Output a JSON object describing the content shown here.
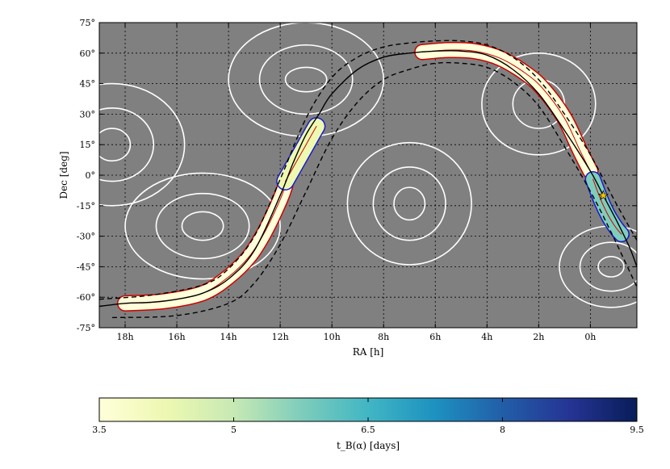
{
  "chart_data": [
    {
      "type": "contour",
      "xlabel": "RA [h]",
      "ylabel": "Dec [deg]",
      "x_ticks": [
        "18h",
        "16h",
        "14h",
        "12h",
        "10h",
        "8h",
        "6h",
        "4h",
        "2h",
        "0h"
      ],
      "x_tick_values_h": [
        18,
        16,
        14,
        12,
        10,
        8,
        6,
        4,
        2,
        0
      ],
      "xlim_h": [
        19,
        -1.8
      ],
      "y_ticks": [
        "75°",
        "60°",
        "45°",
        "30°",
        "15°",
        "0°",
        "-15°",
        "-30°",
        "-45°",
        "-60°",
        "-75°"
      ],
      "y_tick_values_deg": [
        75,
        60,
        45,
        30,
        15,
        0,
        -15,
        -30,
        -45,
        -60,
        -75
      ],
      "ylim_deg": [
        -75,
        75
      ],
      "grid": true,
      "background_color": "#808080",
      "colors": {
        "track_line": "#000000",
        "track_bounds": "#000000",
        "white_contours": "#ffffff",
        "red_contour": "#cc0000",
        "blue_contour": "#1a1acc",
        "star": "#f5c400"
      },
      "series": [
        {
          "points": [
            [
              19.0,
              -64.5
            ],
            [
              18.0,
              -63.0
            ],
            [
              17.0,
              -62.5
            ],
            [
              16.0,
              -61.0
            ],
            [
              15.0,
              -58.0
            ],
            [
              14.0,
              -51.0
            ],
            [
              13.0,
              -37.0
            ],
            [
              12.0,
              -10.0
            ],
            [
              11.5,
              6.0
            ],
            [
              11.0,
              20.0
            ],
            [
              10.5,
              30.0
            ],
            [
              10.0,
              40.0
            ],
            [
              9.0,
              52.0
            ],
            [
              8.0,
              58.0
            ],
            [
              7.0,
              60.0
            ],
            [
              6.0,
              61.0
            ],
            [
              5.0,
              61.0
            ],
            [
              4.0,
              59.0
            ],
            [
              3.0,
              52.0
            ],
            [
              2.0,
              40.0
            ],
            [
              1.0,
              22.0
            ],
            [
              0.0,
              2.0
            ],
            [
              -0.5,
              -10.0
            ],
            [
              -1.0,
              -22.0
            ],
            [
              -1.5,
              -35.0
            ],
            [
              -1.8,
              -45.0
            ]
          ]
        },
        {
          "points": [
            [
              19.0,
              -61.0
            ],
            [
              17.0,
              -59.0
            ],
            [
              15.0,
              -54.0
            ],
            [
              14.0,
              -46.0
            ],
            [
              13.0,
              -30.0
            ],
            [
              12.0,
              -2.0
            ],
            [
              11.0,
              28.0
            ],
            [
              10.0,
              48.0
            ],
            [
              9.0,
              58.0
            ],
            [
              8.0,
              63.0
            ],
            [
              7.0,
              65.0
            ],
            [
              6.0,
              66.0
            ],
            [
              5.0,
              66.0
            ],
            [
              4.0,
              64.0
            ],
            [
              3.0,
              58.0
            ],
            [
              2.0,
              47.0
            ],
            [
              1.0,
              30.0
            ],
            [
              0.0,
              10.0
            ],
            [
              -1.0,
              -14.0
            ],
            [
              -1.8,
              -32.0
            ]
          ]
        },
        {
          "points": [
            [
              18.5,
              -70.0
            ],
            [
              16.0,
              -69.0
            ],
            [
              14.0,
              -63.0
            ],
            [
              13.0,
              -53.0
            ],
            [
              12.0,
              -34.0
            ],
            [
              11.0,
              -8.0
            ],
            [
              10.0,
              18.0
            ],
            [
              9.0,
              36.0
            ],
            [
              8.0,
              47.0
            ],
            [
              7.0,
              52.0
            ],
            [
              6.0,
              55.0
            ],
            [
              5.0,
              55.0
            ],
            [
              4.0,
              53.0
            ],
            [
              3.0,
              46.0
            ],
            [
              2.0,
              34.0
            ],
            [
              1.0,
              14.0
            ],
            [
              0.0,
              -8.0
            ],
            [
              -0.8,
              -28.0
            ],
            [
              -1.8,
              -55.0
            ]
          ]
        }
      ],
      "probability_band": [
        {
          "segment": "south-west arc",
          "centerline": [
            [
              18.0,
              -63.0
            ],
            [
              16.5,
              -62.0
            ],
            [
              15.0,
              -58.0
            ],
            [
              14.0,
              -50.0
            ],
            [
              13.2,
              -40.0
            ],
            [
              12.6,
              -28.0
            ],
            [
              12.0,
              -12.0
            ],
            [
              11.8,
              -5.0
            ]
          ],
          "width_deg": 3.0,
          "tB_days": 3.5
        },
        {
          "segment": "central arc",
          "centerline": [
            [
              11.8,
              -3.0
            ],
            [
              11.4,
              6.0
            ],
            [
              11.0,
              15.0
            ],
            [
              10.6,
              24.0
            ]
          ],
          "width_deg": 3.5,
          "tB_days": 4.0
        },
        {
          "segment": "northern arc",
          "centerline": [
            [
              6.5,
              60.5
            ],
            [
              5.5,
              61.5
            ],
            [
              4.5,
              61.0
            ],
            [
              3.5,
              57.5
            ],
            [
              2.5,
              50.0
            ],
            [
              1.8,
              42.0
            ],
            [
              1.0,
              28.0
            ],
            [
              0.4,
              12.0
            ],
            [
              0.0,
              2.0
            ]
          ],
          "width_deg": 3.0,
          "tB_days": 3.5
        },
        {
          "segment": "south-east arc",
          "centerline": [
            [
              -0.1,
              -2.0
            ],
            [
              -0.4,
              -12.0
            ],
            [
              -0.7,
              -20.0
            ],
            [
              -1.0,
              -26.0
            ],
            [
              -1.2,
              -29.0
            ]
          ],
          "width_deg": 3.0,
          "tB_days": 6.0
        }
      ],
      "marker": {
        "type": "star",
        "ra_h": -0.5,
        "dec_deg": -10.0
      },
      "white_contours": [
        {
          "center_h": 11.0,
          "center_deg": 47.0,
          "radii_h": [
            0.8,
            1.8,
            3.0
          ],
          "radii_deg": [
            6.0,
            17.0,
            28.0
          ]
        },
        {
          "center_h": 7.0,
          "center_deg": -14.0,
          "radii_h": [
            0.6,
            1.4,
            2.4
          ],
          "radii_deg": [
            8.0,
            18.0,
            30.0
          ]
        },
        {
          "center_h": 18.5,
          "center_deg": 15.0,
          "radii_h": [
            0.7,
            1.6,
            2.8
          ],
          "radii_deg": [
            8.0,
            18.0,
            30.0
          ]
        },
        {
          "center_h": 15.0,
          "center_deg": -25.0,
          "radii_h": [
            0.8,
            1.8,
            3.0
          ],
          "radii_deg": [
            7.0,
            16.0,
            26.0
          ]
        },
        {
          "center_h": -0.8,
          "center_deg": -45.0,
          "radii_h": [
            0.5,
            1.2,
            2.0
          ],
          "radii_deg": [
            5.0,
            12.0,
            20.0
          ]
        },
        {
          "center_h": 2.0,
          "center_deg": 35.0,
          "radii_h": [
            1.0,
            2.2
          ],
          "radii_deg": [
            12.0,
            25.0
          ]
        }
      ]
    },
    {
      "type": "colorbar",
      "xlabel": "t_B(α) [days]",
      "ticks": [
        "3.5",
        "5",
        "6.5",
        "8",
        "9.5"
      ],
      "tick_values": [
        3.5,
        5,
        6.5,
        8,
        9.5
      ],
      "range": [
        3.5,
        9.5
      ],
      "colormap": [
        "#ffffd9",
        "#edf8b1",
        "#c7e9b4",
        "#7fcdbb",
        "#41b6c4",
        "#1d91c0",
        "#225ea8",
        "#253494",
        "#081d58"
      ]
    }
  ]
}
